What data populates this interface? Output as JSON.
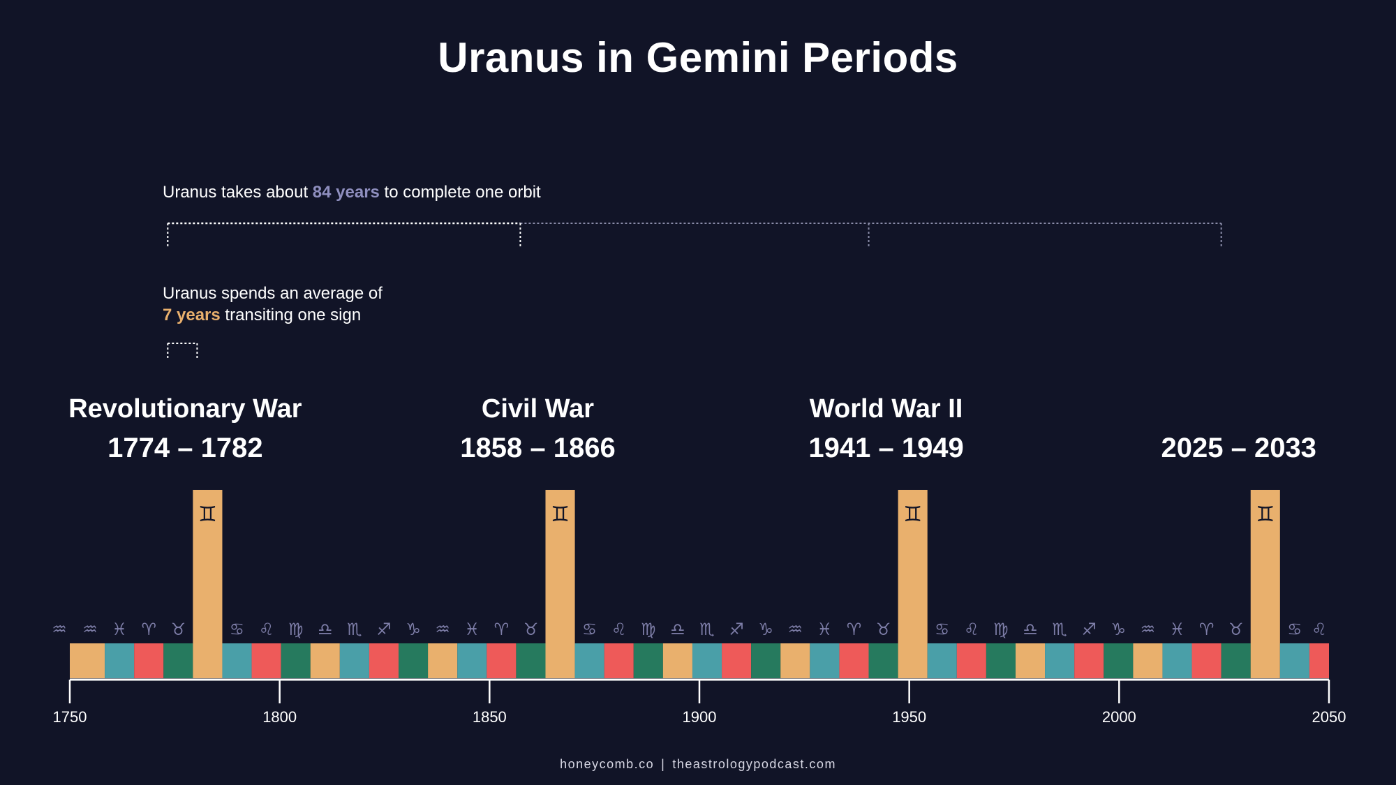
{
  "title": "Uranus in Gemini Periods",
  "orbit_note": {
    "before": "Uranus takes about ",
    "highlight": "84 years",
    "after": " to complete one orbit"
  },
  "sign_note": {
    "line1": "Uranus spends an average of",
    "highlight": "7 years",
    "after": " transiting one sign"
  },
  "footer": {
    "left": "honeycomb.co",
    "separator": "|",
    "right": "theastrologypodcast.com"
  },
  "colors": {
    "background": "#111427",
    "gemini_orange": "#e9b06d",
    "teal": "#4a9fa8",
    "red": "#ee5a59",
    "green": "#267a5e",
    "glyph": "#7e7ea8",
    "orbit_highlight": "#8f8fbf"
  },
  "chart_data": {
    "type": "timeline",
    "title": "Uranus in Gemini Periods",
    "x_range": [
      1750,
      2050
    ],
    "x_ticks": [
      "1750",
      "1800",
      "1850",
      "1900",
      "1950",
      "2000",
      "2050"
    ],
    "orbit_years": 84,
    "sign_years": 7,
    "orbit_markers": [
      1774,
      1858,
      1941,
      2025
    ],
    "sign_cycle": [
      "aquarius",
      "pisces",
      "aries",
      "taurus",
      "gemini",
      "cancer",
      "leo",
      "virgo",
      "libra",
      "scorpio",
      "sagittarius",
      "capricorn"
    ],
    "sign_glyphs": [
      "♒",
      "♓",
      "♈",
      "♉",
      "♊",
      "♋",
      "♌",
      "♍",
      "♎",
      "♏",
      "♐",
      "♑"
    ],
    "sign_segments_start": 1750,
    "sign_segments_first_sign_index": 11,
    "periods": [
      {
        "label": "Revolutionary War",
        "dates": "1774 – 1782",
        "start": 1774,
        "end": 1782
      },
      {
        "label": "Civil War",
        "dates": "1858 – 1866",
        "start": 1858,
        "end": 1866
      },
      {
        "label": "World War II",
        "dates": "1941 – 1949",
        "start": 1941,
        "end": 1949
      },
      {
        "label": "",
        "dates": "2025 – 2033",
        "start": 2025,
        "end": 2033
      }
    ]
  }
}
